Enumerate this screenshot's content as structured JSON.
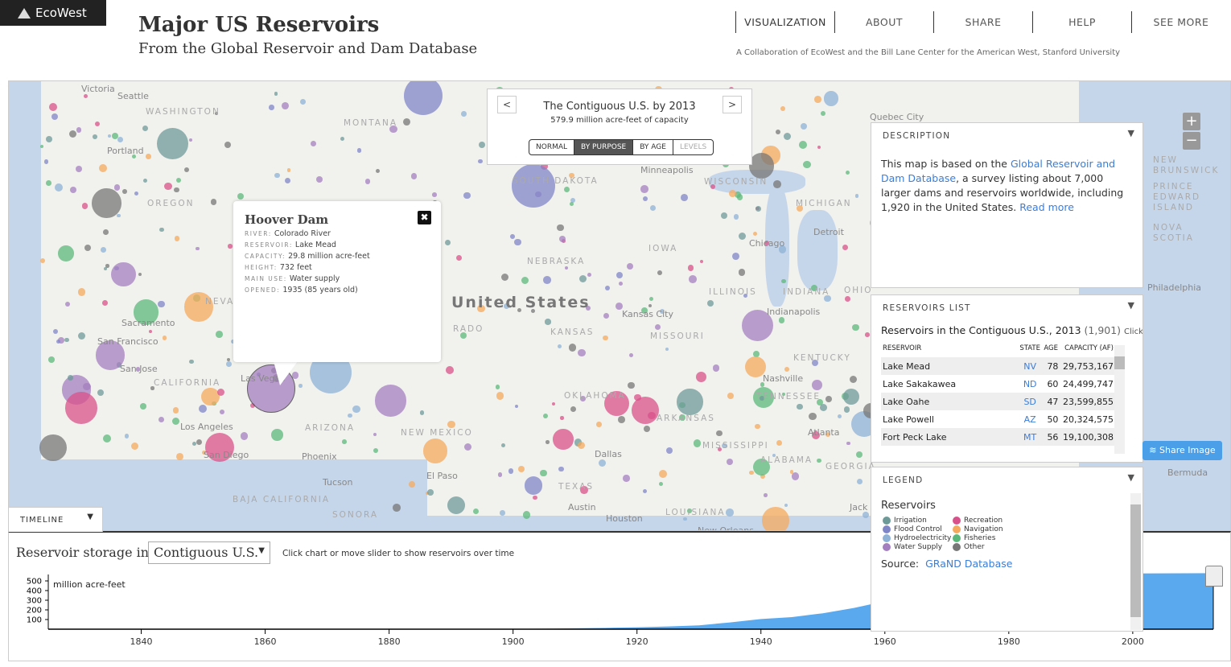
{
  "header": {
    "logo": "EcoWest",
    "title": "Major US Reservoirs",
    "subtitle": "From the Global Reservoir and Dam Database",
    "nav": [
      "VISUALIZATION",
      "ABOUT",
      "SHARE",
      "HELP",
      "SEE MORE"
    ],
    "collab": "A Collaboration of EcoWest and the Bill Lane Center for the American West, Stanford University"
  },
  "map": {
    "country_label": "United States",
    "labels": [
      "Victoria",
      "Seattle",
      "WASHINGTON",
      "Portland",
      "OREGON",
      "MONTANA",
      "Sacramento",
      "San Francisco",
      "San Jose",
      "CALIFORNIA",
      "NEVA",
      "Las Vegas",
      "Los Angeles",
      "San Diego",
      "ARIZONA",
      "Phoenix",
      "Tucson",
      "BAJA CALIFORNIA",
      "SONORA",
      "NEW MEXICO",
      "El Paso",
      "RADO",
      "NEBRASKA",
      "KANSAS",
      "Kansas City",
      "MISSOURI",
      "IOWA",
      "OKLAHOMA",
      "ARKANSAS",
      "TEXAS",
      "Dallas",
      "Austin",
      "Houston",
      "LOUISIANA",
      "New Orleans",
      "MISSISSIPPI",
      "ALABAMA",
      "GEORGIA",
      "Atlanta",
      "TENNESSEE",
      "Nashville",
      "KENTUCKY",
      "ILLINOIS",
      "INDIANA",
      "Indianapolis",
      "Chicago",
      "Detroit",
      "MICHIGAN",
      "WISCONSIN",
      "Minneapolis",
      "SOUTH DAKOTA",
      "Philadelphia",
      "OHIO",
      "Quebec City",
      "Jack",
      "NEW BRUNSWICK",
      "PRINCE EDWARD ISLAND",
      "NOVA SCOTIA",
      "Bermuda"
    ],
    "zoom_in": "+",
    "zoom_out": "−"
  },
  "yearbox": {
    "prev": "<",
    "next": ">",
    "title": "The Contiguous U.S. by 2013",
    "subtitle": "579.9 million acre-feet of capacity",
    "modes": [
      "NORMAL",
      "BY PURPOSE",
      "BY AGE",
      "LEVELS"
    ],
    "active_mode": "BY PURPOSE"
  },
  "popup": {
    "name": "Hoover Dam",
    "close": "✖",
    "rows": [
      {
        "k": "RIVER:",
        "v": "Colorado River"
      },
      {
        "k": "RESERVOIR:",
        "v": "Lake Mead"
      },
      {
        "k": "CAPACITY:",
        "v": "29.8 million acre-feet"
      },
      {
        "k": "HEIGHT:",
        "v": "732 feet"
      },
      {
        "k": "MAIN USE:",
        "v": "Water supply"
      },
      {
        "k": "OPENED:",
        "v": "1935 (85 years old)"
      }
    ]
  },
  "description": {
    "heading": "DESCRIPTION",
    "t1": "This map is based on the ",
    "link": "Global Reservoir and Dam Database",
    "t2": ", a survey listing about 7,000 larger dams and reservoirs worldwide, including 1,920 in the United States.  ",
    "more": "Read more"
  },
  "reservoirs": {
    "heading": "RESERVOIRS LIST",
    "title": "Reservoirs in the Contiguous U.S., 2013",
    "count": "(1,901)",
    "hint": "Click to",
    "cols": [
      "RESERVOIR",
      "STATE",
      "AGE",
      "CAPACITY (AF)"
    ],
    "rows": [
      [
        "Lake Mead",
        "NV",
        "78",
        "29,753,167"
      ],
      [
        "Lake Sakakawea",
        "ND",
        "60",
        "24,499,747"
      ],
      [
        "Lake Oahe",
        "SD",
        "47",
        "23,599,855"
      ],
      [
        "Lake Powell",
        "AZ",
        "50",
        "20,324,575"
      ],
      [
        "Fort Peck Lake",
        "MT",
        "56",
        "19,100,308"
      ]
    ]
  },
  "legend": {
    "heading": "LEGEND",
    "subtitle": "Reservoirs",
    "source_label": "Source:",
    "source_link": "GRaND Database",
    "items": [
      {
        "label": "Irrigation",
        "color": "#6d9a98"
      },
      {
        "label": "Recreation",
        "color": "#d9518a"
      },
      {
        "label": "Flood Control",
        "color": "#7f86c8"
      },
      {
        "label": "Navigation",
        "color": "#f6a95e"
      },
      {
        "label": "Hydroelectricity",
        "color": "#8eb1d6"
      },
      {
        "label": "Fisheries",
        "color": "#5cb87a"
      },
      {
        "label": "Water Supply",
        "color": "#a47fbf"
      },
      {
        "label": "Other",
        "color": "#777777"
      }
    ]
  },
  "share": "Share Image",
  "timeline": {
    "tab": "TIMELINE",
    "label": "Reservoir storage in",
    "select": "Contiguous U.S.",
    "hint": "Click chart or move slider to show reservoirs over time"
  },
  "chart_data": {
    "type": "area",
    "ylabel": "million acre-feet",
    "yticks": [
      100,
      200,
      300,
      400,
      500
    ],
    "ylim": [
      0,
      580
    ],
    "xlim": [
      1825,
      2013
    ],
    "xticks": [
      1840,
      1860,
      1880,
      1900,
      1920,
      1940,
      1960,
      1980,
      2000
    ],
    "color": "#5aa9ef",
    "x": [
      1825,
      1880,
      1890,
      1900,
      1905,
      1910,
      1915,
      1920,
      1925,
      1930,
      1935,
      1940,
      1945,
      1950,
      1955,
      1960,
      1965,
      1970,
      1975,
      1980,
      1990,
      2000,
      2013
    ],
    "values": [
      0,
      1,
      2,
      3,
      5,
      9,
      14,
      20,
      28,
      40,
      70,
      105,
      125,
      165,
      220,
      290,
      380,
      460,
      520,
      555,
      570,
      577,
      579.9
    ],
    "slider_year": 2013
  }
}
